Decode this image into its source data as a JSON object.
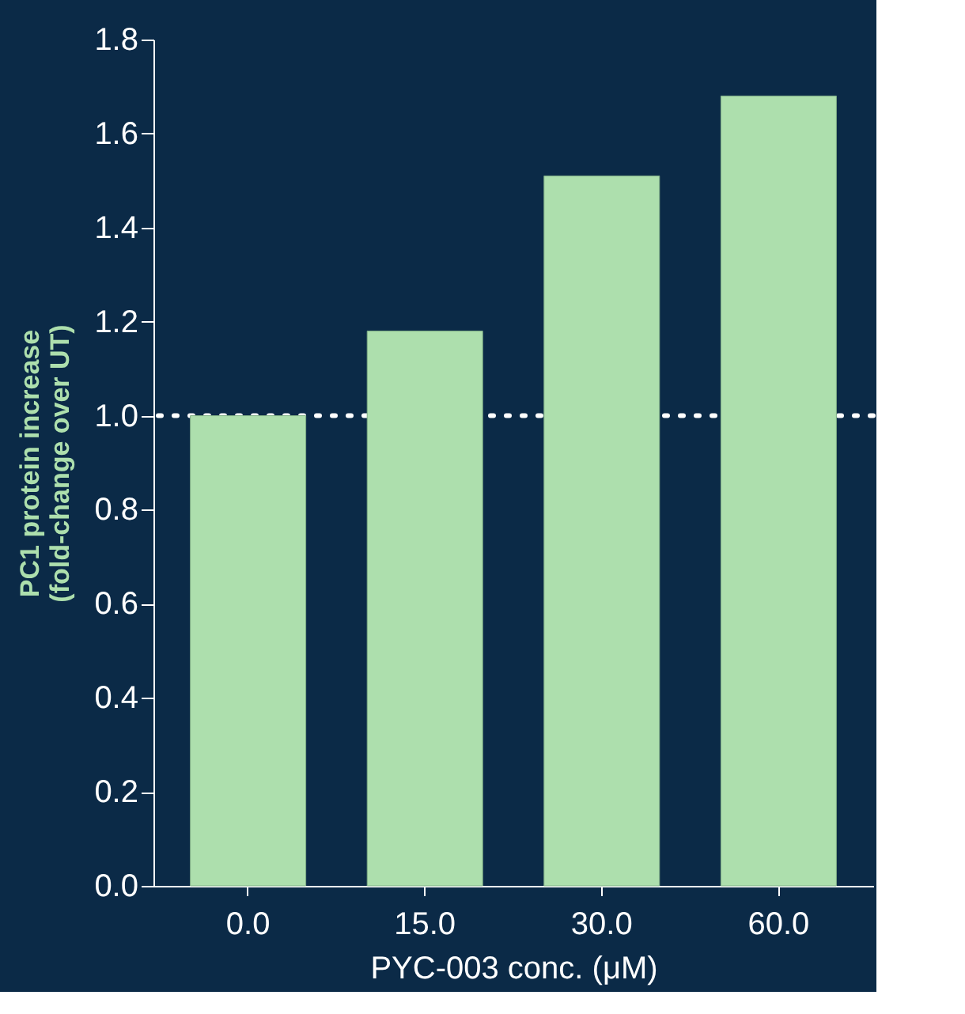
{
  "chart_data": {
    "type": "bar",
    "xlabel": "PYC-003 conc. (μM)",
    "ylabel": "PC1 protein increase\n(fold-change over UT)",
    "categories": [
      "0.0",
      "15.0",
      "30.0",
      "60.0"
    ],
    "values": [
      1.0,
      1.18,
      1.51,
      1.68
    ],
    "color": "#addfad",
    "ylim": [
      0,
      1.8
    ],
    "yticks": [
      {
        "value": 0,
        "label": "0.0"
      },
      0.2,
      0.4,
      0.6,
      0.8,
      {
        "value": 1,
        "label": "1.0"
      },
      1.2,
      1.4,
      1.6,
      1.8
    ],
    "ref_lines": [
      {
        "axis": "y",
        "value": 1.0,
        "color": "#ffffff",
        "line_style": "dotted"
      }
    ],
    "grid": false
  }
}
